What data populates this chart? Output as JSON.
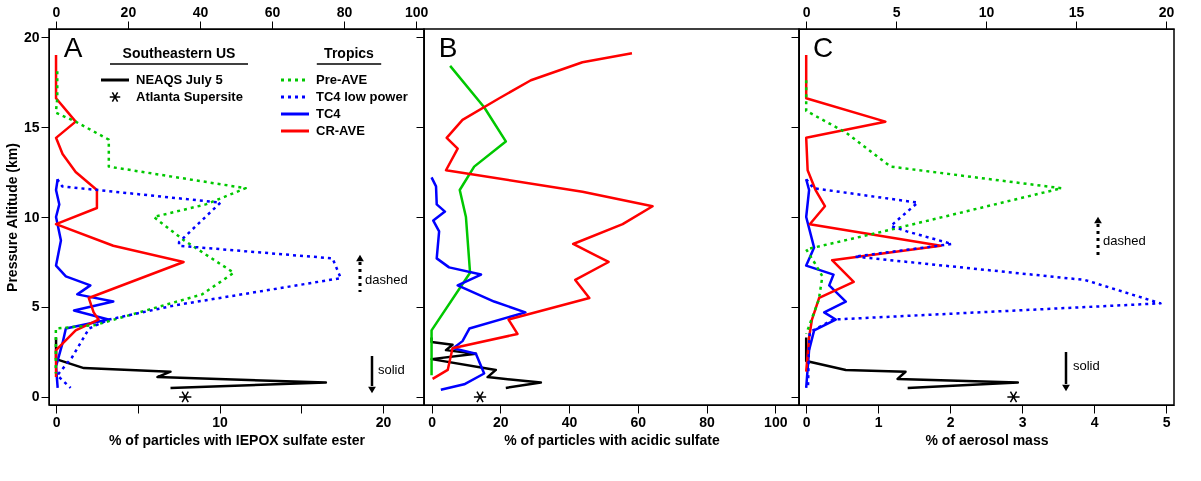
{
  "chart_data": [
    {
      "type": "line",
      "xlabel": "% of particles with IEPOX sulfate ester",
      "ylabel": "Pressure Altitude (km)",
      "xlim": [
        -0.43,
        22.5
      ],
      "xticks": [
        0,
        {
          "value": 5,
          "label": null
        },
        10,
        {
          "value": 15,
          "label": null
        },
        20
      ],
      "x2lim": [
        -1.9,
        102.2
      ],
      "x2ticks": [
        0,
        20,
        40,
        60,
        80,
        100
      ],
      "ylim": [
        -0.45,
        20.45
      ],
      "yticks": [
        0,
        5,
        10,
        15,
        20
      ],
      "legend": "top",
      "annotations": [
        "A",
        "Southeastern US",
        "Tropics",
        "dashed",
        "solid"
      ],
      "series": [
        {
          "name": "NEAQS July 5",
          "color": "#000000",
          "line_style": "solid",
          "x": [
            0,
            0,
            1.7,
            7.0,
            6.2,
            16.5,
            7.0
          ],
          "values": [
            3.3,
            2.1,
            1.6,
            1.4,
            1.1,
            0.8,
            0.5
          ]
        },
        {
          "name": "Atlanta Supersite",
          "type": "scatter",
          "marker": "cross",
          "color": "#000000",
          "x": [
            7.9
          ],
          "values": [
            0
          ]
        },
        {
          "name": "Pre-AVE",
          "color": "#00c800",
          "line_style": "dotted",
          "axis": "x2",
          "x": [
            0.4,
            0.4,
            0,
            5.5,
            14.7,
            14.7,
            52.7,
            41.6,
            27.2,
            35.6,
            49.4,
            40.6,
            11.0,
            0,
            0
          ],
          "values": [
            18.1,
            16.6,
            15.8,
            15.3,
            14.3,
            12.8,
            11.6,
            10.7,
            10.0,
            8.7,
            6.9,
            5.7,
            4.0,
            3.8,
            1.3
          ]
        },
        {
          "name": "TC4 low power",
          "color": "#0000ff",
          "line_style": "dotted",
          "axis": "x2",
          "x": [
            0.4,
            1.8,
            45.7,
            34.2,
            34.2,
            76.8,
            79.1,
            33.3,
            14.7,
            9.2,
            4.5,
            0.4,
            4.1
          ],
          "values": [
            12.1,
            11.7,
            10.8,
            8.6,
            8.4,
            7.7,
            6.6,
            5.1,
            4.3,
            3.8,
            2.2,
            1.2,
            0.5
          ]
        },
        {
          "name": "TC4",
          "color": "#0000ff",
          "line_style": "solid",
          "x": [
            0.1,
            0,
            0.2,
            0,
            0.3,
            0,
            0.6,
            2.1,
            1.3,
            3.5,
            1.1,
            3.2,
            0.6,
            0.4,
            0,
            0.1
          ],
          "values": [
            12.1,
            11.5,
            10.7,
            10.0,
            8.7,
            7.3,
            6.7,
            6.2,
            5.7,
            5.3,
            4.8,
            4.3,
            3.8,
            3.0,
            1.7,
            0.5
          ]
        },
        {
          "name": "CR-AVE",
          "color": "#ff0000",
          "line_style": "solid",
          "x": [
            0,
            0,
            1.2,
            0,
            0.4,
            1.2,
            2.5,
            2.5,
            0,
            3.5,
            7.8,
            2.0,
            2.3,
            2.6,
            1.2,
            0,
            0
          ],
          "values": [
            19.0,
            16.6,
            15.3,
            14.4,
            13.5,
            12.5,
            11.5,
            10.5,
            9.6,
            8.4,
            7.5,
            5.5,
            4.7,
            4.3,
            3.7,
            2.6,
            1.1
          ]
        }
      ]
    },
    {
      "type": "line",
      "xlabel": "% of particles with acidic sulfate",
      "xlim": [
        -2.2,
        106.9
      ],
      "xticks": [
        0,
        20,
        40,
        60,
        80,
        100
      ],
      "ylim": [
        -0.45,
        20.45
      ],
      "yticks": [
        0,
        5,
        10,
        15,
        20
      ],
      "tick_labels": "x",
      "annotations": [
        "B"
      ],
      "series": [
        {
          "color": "#000000",
          "line_style": "solid",
          "x": [
            0,
            0,
            6.1,
            4.2,
            12.9,
            0,
            18.7,
            16.3,
            31.8,
            21.6
          ],
          "values": [
            3.3,
            3.05,
            2.9,
            2.6,
            2.4,
            2.1,
            1.5,
            1.1,
            0.8,
            0.5
          ]
        },
        {
          "type": "scatter",
          "marker": "cross",
          "color": "#000000",
          "x": [
            14.1
          ],
          "values": [
            0
          ]
        },
        {
          "color": "#00c800",
          "line_style": "solid",
          "x": [
            5.4,
            15.3,
            21.6,
            12.4,
            8.2,
            10.0,
            11.2,
            0,
            0
          ],
          "values": [
            18.4,
            16.1,
            14.2,
            12.8,
            11.5,
            10.0,
            6.9,
            3.7,
            1.2
          ]
        },
        {
          "color": "#0000ff",
          "line_style": "solid",
          "x": [
            0,
            1.3,
            1.5,
            3.9,
            0.5,
            2.2,
            1.5,
            5.1,
            14.4,
            7.6,
            18.2,
            27.3,
            11.0,
            9.0,
            6.3,
            12.9,
            15.3,
            9.5,
            2.7
          ],
          "values": [
            12.2,
            11.7,
            10.7,
            10.3,
            9.8,
            9.2,
            7.7,
            7.2,
            6.8,
            6.2,
            5.3,
            4.7,
            3.8,
            3.1,
            2.7,
            2.4,
            1.3,
            0.7,
            0.4
          ]
        },
        {
          "color": "#ff0000",
          "line_style": "solid",
          "x": [
            58.3,
            43.9,
            28.9,
            19.7,
            9.0,
            4.4,
            7.6,
            4.2,
            43.9,
            64.3,
            55.6,
            41.2,
            51.5,
            41.8,
            45.9,
            22.4,
            25.0,
            6.1,
            4.7,
            0.3
          ],
          "values": [
            19.1,
            18.6,
            17.6,
            16.6,
            15.4,
            14.4,
            13.8,
            12.6,
            11.4,
            10.6,
            9.6,
            8.5,
            7.5,
            6.5,
            5.5,
            4.3,
            3.5,
            2.7,
            1.5,
            1.0
          ]
        }
      ]
    },
    {
      "type": "line",
      "xlabel": "% of aerosol mass",
      "xlim": [
        -0.1,
        5.11
      ],
      "xticks": [
        0,
        1,
        2,
        3,
        4,
        5
      ],
      "x2lim": [
        -0.4,
        20.45
      ],
      "x2ticks": [
        0,
        5,
        10,
        15,
        20
      ],
      "ylim": [
        -0.45,
        20.45
      ],
      "yticks": [
        0,
        5,
        10,
        15,
        20
      ],
      "tick_labels": "x",
      "annotations": [
        "C",
        "dashed",
        "solid"
      ],
      "series": [
        {
          "color": "#000000",
          "line_style": "solid",
          "x": [
            0,
            0,
            0.55,
            1.38,
            1.27,
            2.94,
            1.41
          ],
          "values": [
            3.3,
            2.0,
            1.5,
            1.4,
            1.0,
            0.8,
            0.5
          ]
        },
        {
          "type": "scatter",
          "marker": "cross",
          "color": "#000000",
          "x": [
            2.88
          ],
          "values": [
            0
          ]
        },
        {
          "color": "#00c800",
          "line_style": "dotted",
          "axis": "x2",
          "x": [
            0,
            0,
            0,
            2.2,
            4.7,
            14.2,
            4.3,
            0,
            0.5,
            0.9,
            0.7,
            0
          ],
          "values": [
            17.6,
            16.5,
            15.9,
            14.7,
            12.8,
            11.6,
            9.2,
            8.2,
            7.4,
            6.7,
            5.4,
            3.5
          ]
        },
        {
          "color": "#0000ff",
          "line_style": "dotted",
          "axis": "x2",
          "x": [
            0,
            0.4,
            6.2,
            4.7,
            5.6,
            8.1,
            2.7,
            15.5,
            19.7,
            1.5,
            0.2,
            0.15,
            0.1
          ],
          "values": [
            12.1,
            11.6,
            10.8,
            9.5,
            9.2,
            8.5,
            7.8,
            6.5,
            5.2,
            4.3,
            3.6,
            2.6,
            0.5
          ]
        },
        {
          "color": "#0000ff",
          "line_style": "solid",
          "x": [
            0,
            0.04,
            0,
            0.11,
            0,
            0.38,
            0.32,
            0.55,
            0.25,
            0.41,
            0.11,
            0.04,
            0
          ],
          "values": [
            12.1,
            11.5,
            10.0,
            8.3,
            7.3,
            6.8,
            6.2,
            5.3,
            4.7,
            4.3,
            3.7,
            2.6,
            0.5
          ]
        },
        {
          "color": "#ff0000",
          "line_style": "solid",
          "x": [
            0,
            0,
            1.1,
            0,
            0.02,
            0.13,
            0.26,
            0.05,
            1.87,
            0.36,
            0.66,
            0.18,
            0.08,
            0.04,
            0
          ],
          "values": [
            19.0,
            16.6,
            15.3,
            14.4,
            12.6,
            11.5,
            10.6,
            9.6,
            8.4,
            7.6,
            6.4,
            5.5,
            4.3,
            3.3,
            1.4
          ]
        }
      ]
    }
  ]
}
